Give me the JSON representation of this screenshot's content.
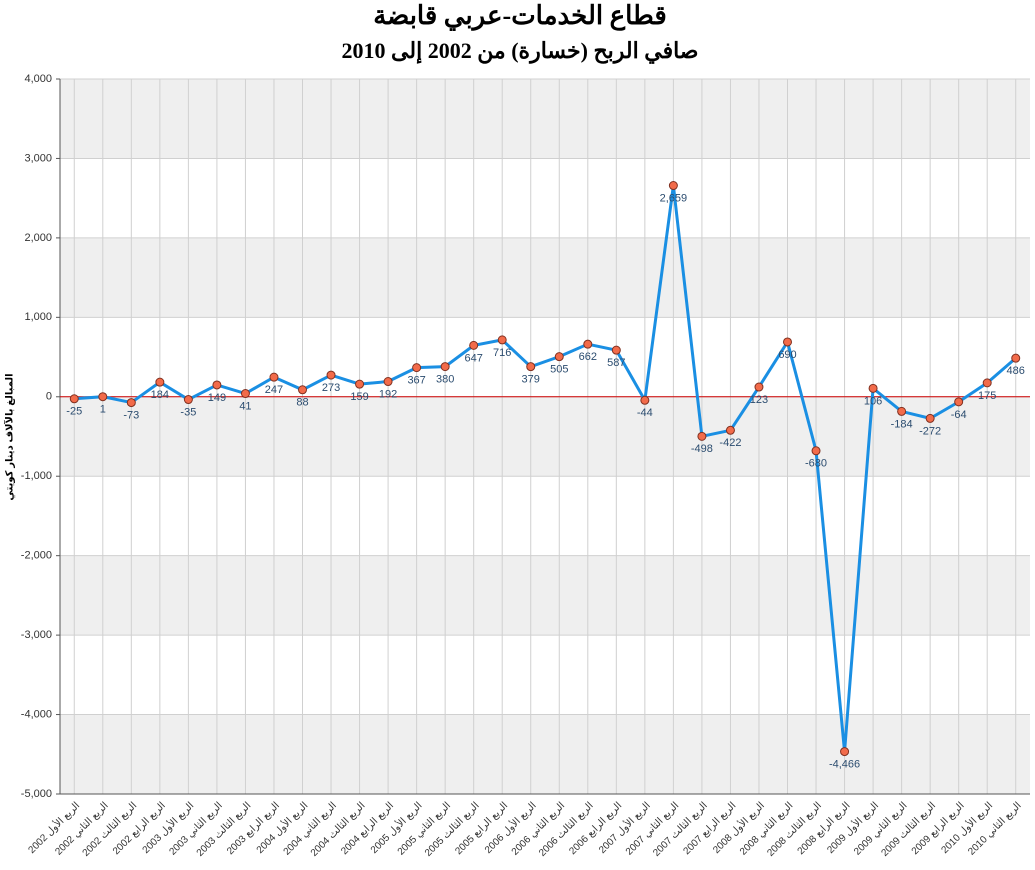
{
  "chart_data": {
    "type": "line",
    "title": "قطاع الخدمات-عربي قابضة",
    "subtitle": "صافي الربح (خسارة) من 2002 إلى 2010",
    "y_label": "المبالغ بالآلاف دينار كويتي",
    "categories": [
      "الربع الأول 2002",
      "الربع الثاني 2002",
      "الربع الثالث 2002",
      "الربع الرابع 2002",
      "الربع الأول 2003",
      "الربع الثاني 2003",
      "الربع الثالث 2003",
      "الربع الرابع 2003",
      "الربع الأول 2004",
      "الربع الثاني 2004",
      "الربع الثالث 2004",
      "الربع الرابع 2004",
      "الربع الأول 2005",
      "الربع الثاني 2005",
      "الربع الثالث 2005",
      "الربع الرابع 2005",
      "الربع الأول 2006",
      "الربع الثاني 2006",
      "الربع الثالث 2006",
      "الربع الرابع 2006",
      "الربع الأول 2007",
      "الربع الثاني 2007",
      "الربع الثالث 2007",
      "الربع الرابع 2007",
      "الربع الأول 2008",
      "الربع الثاني 2008",
      "الربع الثالث 2008",
      "الربع الرابع 2008",
      "الربع الأول 2009",
      "الربع الثاني 2009",
      "الربع الثالث 2009",
      "الربع الرابع 2009",
      "الربع الأول 2010",
      "الربع الثاني 2010"
    ],
    "series": [
      {
        "color": "#1a8fe3",
        "marker_color": "#f26b4a",
        "values": [
          -25,
          1,
          -73,
          184,
          -35,
          149,
          41,
          247,
          88,
          273,
          159,
          192,
          367,
          380,
          647,
          716,
          379,
          505,
          662,
          587,
          -44,
          2659,
          -498,
          -422,
          123,
          690,
          -680,
          -4466,
          106,
          -184,
          -272,
          -64,
          175,
          486
        ],
        "value_labels": [
          "-25",
          "1",
          "-73",
          "184",
          "-35",
          "149",
          "41",
          "247",
          "88",
          "273",
          "159",
          "192",
          "367",
          "380",
          "647",
          "716",
          "379",
          "505",
          "662",
          "587",
          "-44",
          "2,659",
          "-498",
          "-422",
          "123",
          "690",
          "-680",
          "-4,466",
          "106",
          "-184",
          "-272",
          "-64",
          "175",
          "486"
        ]
      }
    ],
    "ylim": [
      -5000,
      4000
    ],
    "yticks": [
      {
        "value": -5000,
        "label": "-5,000"
      },
      {
        "value": -4000,
        "label": "-4,000"
      },
      {
        "value": -3000,
        "label": "-3,000"
      },
      {
        "value": -2000,
        "label": "-2,000"
      },
      {
        "value": -1000,
        "label": "-1,000"
      },
      0,
      {
        "value": 1000,
        "label": "1,000"
      },
      {
        "value": 2000,
        "label": "2,000"
      },
      {
        "value": 3000,
        "label": "3,000"
      },
      {
        "value": 4000,
        "label": "4,000"
      }
    ],
    "grid": true
  }
}
